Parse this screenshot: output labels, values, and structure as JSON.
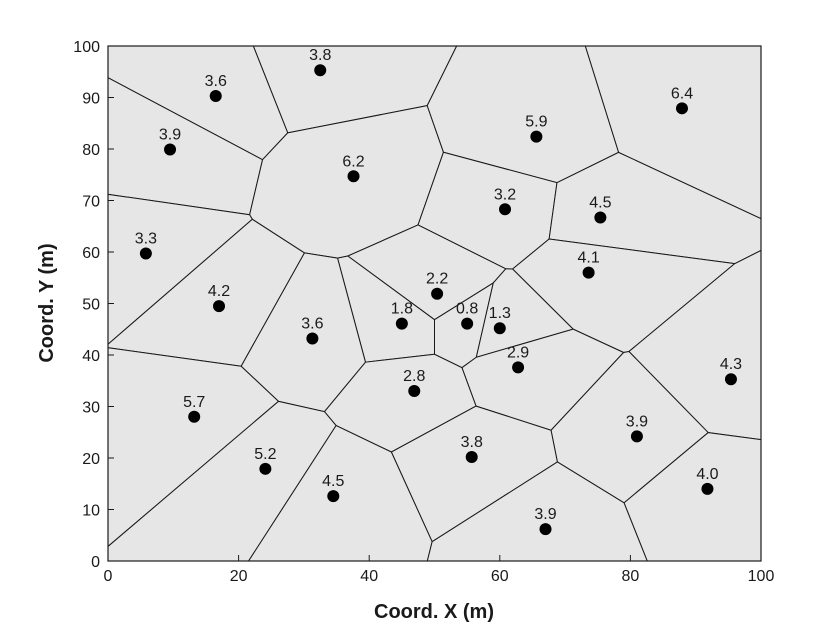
{
  "chart_data": {
    "type": "scatter",
    "subtype": "voronoi-tessellation",
    "xlabel": "Coord. X (m)",
    "ylabel": "Coord. Y (m)",
    "xlim": [
      0,
      100
    ],
    "ylim": [
      0,
      100
    ],
    "xticks": [
      0,
      20,
      40,
      60,
      80,
      100
    ],
    "yticks": [
      0,
      10,
      20,
      30,
      40,
      50,
      60,
      70,
      80,
      90,
      100
    ],
    "grid": false,
    "legend": "none",
    "colors": {
      "cell_fill": "#e6e6e6",
      "cell_edge": "#1a1a1a",
      "point": "#000000"
    },
    "points": [
      {
        "x": 32.5,
        "y": 95.3,
        "label": "3.8"
      },
      {
        "x": 16.5,
        "y": 90.3,
        "label": "3.6"
      },
      {
        "x": 9.5,
        "y": 79.9,
        "label": "3.9"
      },
      {
        "x": 37.6,
        "y": 74.7,
        "label": "6.2"
      },
      {
        "x": 87.9,
        "y": 87.9,
        "label": "6.4"
      },
      {
        "x": 65.6,
        "y": 82.4,
        "label": "5.9"
      },
      {
        "x": 60.8,
        "y": 68.3,
        "label": "3.2"
      },
      {
        "x": 75.4,
        "y": 66.7,
        "label": "4.5"
      },
      {
        "x": 5.8,
        "y": 59.7,
        "label": "3.3"
      },
      {
        "x": 73.6,
        "y": 56.0,
        "label": "4.1"
      },
      {
        "x": 50.4,
        "y": 51.9,
        "label": "2.2"
      },
      {
        "x": 17.0,
        "y": 49.5,
        "label": "4.2"
      },
      {
        "x": 45.0,
        "y": 46.1,
        "label": "1.8"
      },
      {
        "x": 55.0,
        "y": 46.1,
        "label": "0.8"
      },
      {
        "x": 60.0,
        "y": 45.2,
        "label": "1.3"
      },
      {
        "x": 31.3,
        "y": 43.2,
        "label": "3.6"
      },
      {
        "x": 62.8,
        "y": 37.6,
        "label": "2.9"
      },
      {
        "x": 95.4,
        "y": 35.3,
        "label": "4.3"
      },
      {
        "x": 46.9,
        "y": 33.0,
        "label": "2.8"
      },
      {
        "x": 13.2,
        "y": 28.0,
        "label": "5.7"
      },
      {
        "x": 81.0,
        "y": 24.2,
        "label": "3.9"
      },
      {
        "x": 55.7,
        "y": 20.2,
        "label": "3.8"
      },
      {
        "x": 24.1,
        "y": 17.9,
        "label": "5.2"
      },
      {
        "x": 91.8,
        "y": 14.0,
        "label": "4.0"
      },
      {
        "x": 34.5,
        "y": 12.6,
        "label": "4.5"
      },
      {
        "x": 67.0,
        "y": 6.2,
        "label": "3.9"
      }
    ]
  }
}
